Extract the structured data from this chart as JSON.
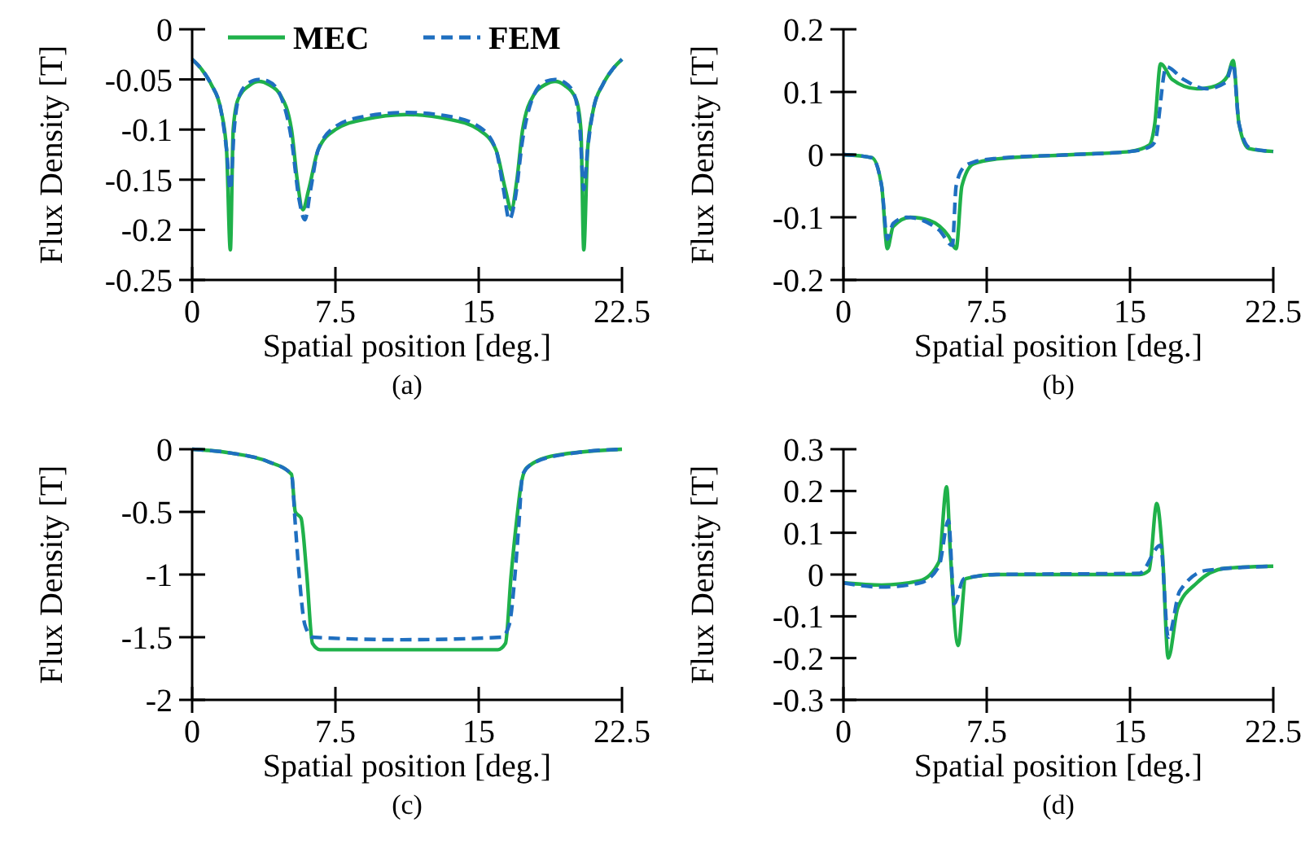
{
  "chart_data": [
    {
      "type": "line",
      "xlabel": "Spatial position [deg.]",
      "ylabel": "Flux Density [T]",
      "annotations": [
        "(a)"
      ],
      "xlim": [
        0,
        22.5
      ],
      "xticks": [
        0,
        7.5,
        15,
        22.5
      ],
      "ylim": [
        -0.25,
        0
      ],
      "yticks": [
        0,
        -0.05,
        -0.1,
        -0.15,
        -0.2,
        -0.25
      ],
      "grid": false,
      "legend": "top",
      "series": [
        {
          "name": "MEC",
          "color": "#1fb14a",
          "line_style": "solid",
          "x": [
            0,
            0.5,
            1,
            1.5,
            1.8,
            2.0,
            2.15,
            2.4,
            3,
            3.5,
            4,
            4.6,
            5.2,
            5.5,
            5.8,
            6.1,
            6.6,
            7.5,
            9,
            11.25,
            13.5,
            15,
            15.9,
            16.4,
            16.7,
            17,
            17.3,
            17.9,
            18.5,
            19,
            19.5,
            20.1,
            20.35,
            20.5,
            20.7,
            21,
            21.5,
            22,
            22.5
          ],
          "values": [
            -0.03,
            -0.04,
            -0.055,
            -0.08,
            -0.12,
            -0.22,
            -0.1,
            -0.07,
            -0.056,
            -0.052,
            -0.055,
            -0.065,
            -0.1,
            -0.15,
            -0.18,
            -0.16,
            -0.12,
            -0.1,
            -0.09,
            -0.085,
            -0.09,
            -0.1,
            -0.12,
            -0.16,
            -0.18,
            -0.15,
            -0.1,
            -0.065,
            -0.055,
            -0.052,
            -0.056,
            -0.07,
            -0.1,
            -0.22,
            -0.12,
            -0.08,
            -0.055,
            -0.04,
            -0.03
          ]
        },
        {
          "name": "FEM",
          "color": "#1f6fc0",
          "line_style": "dashed",
          "x": [
            0,
            0.5,
            1,
            1.5,
            1.8,
            2.0,
            2.2,
            2.5,
            3,
            3.5,
            4,
            4.6,
            5.2,
            5.6,
            5.9,
            6.2,
            6.6,
            7.5,
            9,
            11.25,
            13.5,
            15,
            15.9,
            16.3,
            16.6,
            16.9,
            17.3,
            17.9,
            18.5,
            19,
            19.5,
            20,
            20.3,
            20.5,
            20.7,
            21,
            21.5,
            22,
            22.5
          ],
          "values": [
            -0.03,
            -0.04,
            -0.055,
            -0.08,
            -0.12,
            -0.16,
            -0.1,
            -0.065,
            -0.053,
            -0.05,
            -0.052,
            -0.065,
            -0.11,
            -0.17,
            -0.19,
            -0.16,
            -0.12,
            -0.097,
            -0.087,
            -0.083,
            -0.087,
            -0.097,
            -0.12,
            -0.16,
            -0.19,
            -0.17,
            -0.11,
            -0.065,
            -0.052,
            -0.05,
            -0.053,
            -0.065,
            -0.1,
            -0.16,
            -0.12,
            -0.08,
            -0.055,
            -0.04,
            -0.03
          ]
        }
      ]
    },
    {
      "type": "line",
      "xlabel": "Spatial position [deg.]",
      "ylabel": "Flux Density [T]",
      "annotations": [
        "(b)"
      ],
      "xlim": [
        0,
        22.5
      ],
      "xticks": [
        0,
        7.5,
        15,
        22.5
      ],
      "ylim": [
        -0.2,
        0.2
      ],
      "yticks": [
        0.2,
        0.1,
        0,
        -0.1,
        -0.2
      ],
      "grid": false,
      "series": [
        {
          "color": "#1fb14a",
          "line_style": "solid",
          "x": [
            0,
            1.5,
            2.0,
            2.3,
            2.6,
            3.5,
            4.5,
            5.5,
            5.9,
            6.2,
            6.8,
            8,
            12,
            15,
            16,
            16.3,
            16.6,
            17.2,
            18.5,
            19.5,
            20.1,
            20.4,
            20.7,
            21.2,
            22.5
          ],
          "values": [
            0,
            -0.005,
            -0.05,
            -0.15,
            -0.115,
            -0.1,
            -0.105,
            -0.13,
            -0.15,
            -0.05,
            -0.015,
            -0.007,
            0,
            0.005,
            0.015,
            0.05,
            0.145,
            0.12,
            0.105,
            0.11,
            0.125,
            0.15,
            0.05,
            0.01,
            0.005
          ]
        },
        {
          "color": "#1f6fc0",
          "line_style": "dashed",
          "x": [
            0,
            1.5,
            2.0,
            2.3,
            2.6,
            3.3,
            5,
            5.7,
            5.9,
            6.3,
            6.8,
            8,
            12,
            15,
            16,
            16.3,
            16.9,
            17.8,
            19,
            20,
            20.4,
            20.7,
            21.3,
            22.5
          ],
          "values": [
            0,
            -0.005,
            -0.05,
            -0.135,
            -0.11,
            -0.1,
            -0.12,
            -0.145,
            -0.05,
            -0.02,
            -0.012,
            -0.006,
            0,
            0.005,
            0.012,
            0.02,
            0.14,
            0.12,
            0.105,
            0.115,
            0.145,
            0.05,
            0.01,
            0.005
          ]
        }
      ]
    },
    {
      "type": "line",
      "xlabel": "Spatial position [deg.]",
      "ylabel": "Flux Density [T]",
      "annotations": [
        "(c)"
      ],
      "xlim": [
        0,
        22.5
      ],
      "xticks": [
        0,
        7.5,
        15,
        22.5
      ],
      "ylim": [
        -2,
        0
      ],
      "yticks": [
        0,
        -0.5,
        -1,
        -1.5,
        -2
      ],
      "grid": false,
      "series": [
        {
          "color": "#1fb14a",
          "line_style": "solid",
          "x": [
            0,
            2,
            4,
            5.2,
            5.4,
            5.7,
            6.0,
            6.3,
            6.7,
            11,
            16,
            16.4,
            16.7,
            17.0,
            17.2,
            17.5,
            19,
            22.5
          ],
          "values": [
            0,
            -0.03,
            -0.1,
            -0.2,
            -0.5,
            -0.55,
            -1.0,
            -1.55,
            -1.6,
            -1.6,
            -1.6,
            -1.55,
            -1.0,
            -0.55,
            -0.3,
            -0.15,
            -0.05,
            0
          ]
        },
        {
          "color": "#1f6fc0",
          "line_style": "dashed",
          "x": [
            0,
            2,
            4,
            5.2,
            5.4,
            5.6,
            5.9,
            6.3,
            11,
            16.2,
            16.6,
            16.9,
            17.1,
            17.3,
            18,
            20,
            22.5
          ],
          "values": [
            0,
            -0.03,
            -0.1,
            -0.2,
            -0.6,
            -1.0,
            -1.4,
            -1.5,
            -1.52,
            -1.5,
            -1.4,
            -1.0,
            -0.6,
            -0.2,
            -0.1,
            -0.03,
            0
          ]
        }
      ]
    },
    {
      "type": "line",
      "xlabel": "Spatial position [deg.]",
      "ylabel": "Flux Density [T]",
      "annotations": [
        "(d)"
      ],
      "xlim": [
        0,
        22.5
      ],
      "xticks": [
        0,
        7.5,
        15,
        22.5
      ],
      "ylim": [
        -0.3,
        0.3
      ],
      "yticks": [
        0.3,
        0.2,
        0.1,
        0,
        -0.1,
        -0.2,
        -0.3
      ],
      "grid": false,
      "series": [
        {
          "color": "#1fb14a",
          "line_style": "solid",
          "x": [
            0,
            2,
            4,
            5,
            5.4,
            5.6,
            6.0,
            6.4,
            8,
            15.5,
            16,
            16.4,
            16.7,
            17.0,
            17.5,
            18.5,
            20,
            22.5
          ],
          "values": [
            -0.02,
            -0.025,
            -0.015,
            0.03,
            0.21,
            0.05,
            -0.17,
            -0.01,
            0,
            0,
            0.01,
            0.17,
            0.05,
            -0.2,
            -0.08,
            -0.02,
            0.015,
            0.02
          ]
        },
        {
          "color": "#1f6fc0",
          "line_style": "dashed",
          "x": [
            0,
            2,
            4,
            5,
            5.5,
            5.8,
            6.3,
            8,
            15.5,
            16.6,
            17.0,
            17.6,
            19,
            22.5
          ],
          "values": [
            -0.02,
            -0.03,
            -0.02,
            0.02,
            0.13,
            -0.07,
            -0.01,
            0,
            0.003,
            0.07,
            -0.15,
            -0.04,
            0.01,
            0.02
          ]
        }
      ]
    }
  ]
}
